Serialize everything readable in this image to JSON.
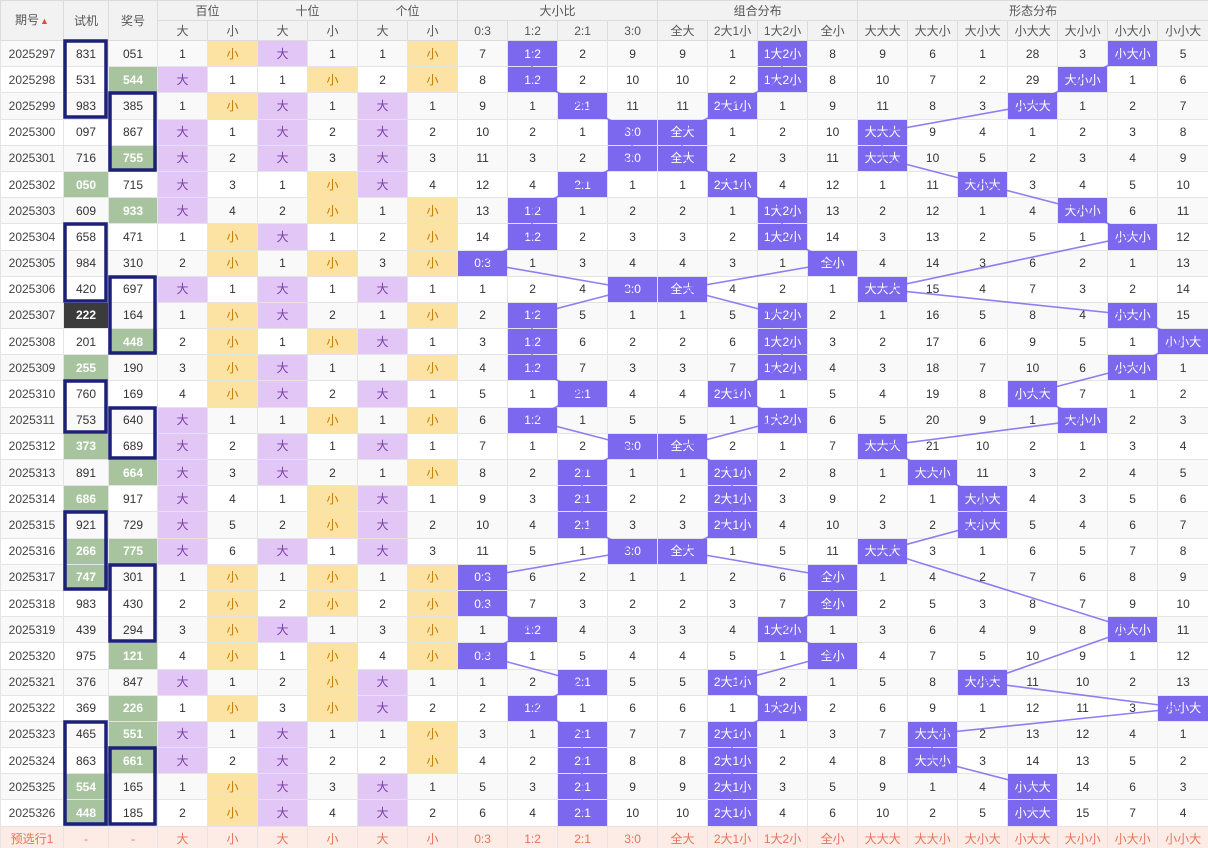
{
  "header": {
    "period": "期号",
    "trial": "试机",
    "prize": "奖号",
    "groups": [
      "百位",
      "十位",
      "个位",
      "大小比",
      "组合分布",
      "形态分布"
    ],
    "sub": [
      "大",
      "小",
      "大",
      "小",
      "大",
      "小",
      "0:3",
      "1:2",
      "2:1",
      "3:0",
      "全大",
      "2大1小",
      "1大2小",
      "全小",
      "大大大",
      "大大小",
      "大小大",
      "小大大",
      "大小小",
      "小大小",
      "小小大"
    ]
  },
  "colors": {
    "accent": "#7b68ee",
    "big": "#e2c7f6",
    "small": "#fce3a3",
    "green": "#a8c49e",
    "box": "#1c2078",
    "pre": "#fdebe6"
  },
  "rows": [
    {
      "p": "2025297",
      "t": "831",
      "w": "051",
      "tc": "",
      "wc": "",
      "v": [
        "1",
        "小",
        "大",
        "1",
        "1",
        "小",
        "7",
        "1:2",
        "2",
        "9",
        "9",
        "1",
        "1大2小",
        "8",
        "9",
        "6",
        "1",
        "28",
        "3",
        "小大小",
        "5"
      ]
    },
    {
      "p": "2025298",
      "t": "531",
      "w": "544",
      "tc": "",
      "wc": "g",
      "v": [
        "大",
        "1",
        "1",
        "小",
        "2",
        "小",
        "8",
        "1:2",
        "2",
        "10",
        "10",
        "2",
        "1大2小",
        "8",
        "10",
        "7",
        "2",
        "29",
        "大小小",
        "1",
        "6"
      ]
    },
    {
      "p": "2025299",
      "t": "983",
      "w": "385",
      "tc": "",
      "wc": "",
      "v": [
        "1",
        "小",
        "大",
        "1",
        "大",
        "1",
        "9",
        "1",
        "2:1",
        "11",
        "11",
        "2大1小",
        "1",
        "9",
        "11",
        "8",
        "3",
        "小大大",
        "1",
        "2",
        "7"
      ]
    },
    {
      "p": "2025300",
      "t": "097",
      "w": "867",
      "tc": "",
      "wc": "",
      "v": [
        "大",
        "1",
        "大",
        "2",
        "大",
        "2",
        "10",
        "2",
        "1",
        "3:0",
        "全大",
        "1",
        "2",
        "10",
        "大大大",
        "9",
        "4",
        "1",
        "2",
        "3",
        "8"
      ]
    },
    {
      "p": "2025301",
      "t": "716",
      "w": "755",
      "tc": "",
      "wc": "g",
      "v": [
        "大",
        "2",
        "大",
        "3",
        "大",
        "3",
        "11",
        "3",
        "2",
        "3:0",
        "全大",
        "2",
        "3",
        "11",
        "大大大",
        "10",
        "5",
        "2",
        "3",
        "4",
        "9"
      ]
    },
    {
      "p": "2025302",
      "t": "050",
      "w": "715",
      "tc": "g",
      "wc": "",
      "v": [
        "大",
        "3",
        "1",
        "小",
        "大",
        "4",
        "12",
        "4",
        "2:1",
        "1",
        "1",
        "2大1小",
        "4",
        "12",
        "1",
        "11",
        "大小大",
        "3",
        "4",
        "5",
        "10"
      ]
    },
    {
      "p": "2025303",
      "t": "609",
      "w": "933",
      "tc": "",
      "wc": "g",
      "v": [
        "大",
        "4",
        "2",
        "小",
        "1",
        "小",
        "13",
        "1:2",
        "1",
        "2",
        "2",
        "1",
        "1大2小",
        "13",
        "2",
        "12",
        "1",
        "4",
        "大小小",
        "6",
        "11"
      ]
    },
    {
      "p": "2025304",
      "t": "658",
      "w": "471",
      "tc": "",
      "wc": "",
      "v": [
        "1",
        "小",
        "大",
        "1",
        "2",
        "小",
        "14",
        "1:2",
        "2",
        "3",
        "3",
        "2",
        "1大2小",
        "14",
        "3",
        "13",
        "2",
        "5",
        "1",
        "小大小",
        "12"
      ]
    },
    {
      "p": "2025305",
      "t": "984",
      "w": "310",
      "tc": "",
      "wc": "",
      "v": [
        "2",
        "小",
        "1",
        "小",
        "3",
        "小",
        "0:3",
        "1",
        "3",
        "4",
        "4",
        "3",
        "1",
        "全小",
        "4",
        "14",
        "3",
        "6",
        "2",
        "1",
        "13"
      ]
    },
    {
      "p": "2025306",
      "t": "420",
      "w": "697",
      "tc": "",
      "wc": "",
      "v": [
        "大",
        "1",
        "大",
        "1",
        "大",
        "1",
        "1",
        "2",
        "4",
        "3:0",
        "全大",
        "4",
        "2",
        "1",
        "大大大",
        "15",
        "4",
        "7",
        "3",
        "2",
        "14"
      ]
    },
    {
      "p": "2025307",
      "t": "222",
      "w": "164",
      "tc": "b",
      "wc": "",
      "v": [
        "1",
        "小",
        "大",
        "2",
        "1",
        "小",
        "2",
        "1:2",
        "5",
        "1",
        "1",
        "5",
        "1大2小",
        "2",
        "1",
        "16",
        "5",
        "8",
        "4",
        "小大小",
        "15"
      ]
    },
    {
      "p": "2025308",
      "t": "201",
      "w": "448",
      "tc": "",
      "wc": "g",
      "v": [
        "2",
        "小",
        "1",
        "小",
        "大",
        "1",
        "3",
        "1:2",
        "6",
        "2",
        "2",
        "6",
        "1大2小",
        "3",
        "2",
        "17",
        "6",
        "9",
        "5",
        "1",
        "小小大"
      ]
    },
    {
      "p": "2025309",
      "t": "255",
      "w": "190",
      "tc": "g",
      "wc": "",
      "v": [
        "3",
        "小",
        "大",
        "1",
        "1",
        "小",
        "4",
        "1:2",
        "7",
        "3",
        "3",
        "7",
        "1大2小",
        "4",
        "3",
        "18",
        "7",
        "10",
        "6",
        "小大小",
        "1"
      ]
    },
    {
      "p": "2025310",
      "t": "760",
      "w": "169",
      "tc": "",
      "wc": "",
      "v": [
        "4",
        "小",
        "大",
        "2",
        "大",
        "1",
        "5",
        "1",
        "2:1",
        "4",
        "4",
        "2大1小",
        "1",
        "5",
        "4",
        "19",
        "8",
        "小大大",
        "7",
        "1",
        "2"
      ]
    },
    {
      "p": "2025311",
      "t": "753",
      "w": "640",
      "tc": "",
      "wc": "",
      "v": [
        "大",
        "1",
        "1",
        "小",
        "1",
        "小",
        "6",
        "1:2",
        "1",
        "5",
        "5",
        "1",
        "1大2小",
        "6",
        "5",
        "20",
        "9",
        "1",
        "大小小",
        "2",
        "3"
      ]
    },
    {
      "p": "2025312",
      "t": "373",
      "w": "689",
      "tc": "g",
      "wc": "",
      "v": [
        "大",
        "2",
        "大",
        "1",
        "大",
        "1",
        "7",
        "1",
        "2",
        "3:0",
        "全大",
        "2",
        "1",
        "7",
        "大大大",
        "21",
        "10",
        "2",
        "1",
        "3",
        "4"
      ]
    },
    {
      "p": "2025313",
      "t": "891",
      "w": "664",
      "tc": "",
      "wc": "g",
      "v": [
        "大",
        "3",
        "大",
        "2",
        "1",
        "小",
        "8",
        "2",
        "2:1",
        "1",
        "1",
        "2大1小",
        "2",
        "8",
        "1",
        "大大小",
        "11",
        "3",
        "2",
        "4",
        "5"
      ]
    },
    {
      "p": "2025314",
      "t": "686",
      "w": "917",
      "tc": "g",
      "wc": "",
      "v": [
        "大",
        "4",
        "1",
        "小",
        "大",
        "1",
        "9",
        "3",
        "2:1",
        "2",
        "2",
        "2大1小",
        "3",
        "9",
        "2",
        "1",
        "大小大",
        "4",
        "3",
        "5",
        "6"
      ]
    },
    {
      "p": "2025315",
      "t": "921",
      "w": "729",
      "tc": "",
      "wc": "",
      "v": [
        "大",
        "5",
        "2",
        "小",
        "大",
        "2",
        "10",
        "4",
        "2:1",
        "3",
        "3",
        "2大1小",
        "4",
        "10",
        "3",
        "2",
        "大小大",
        "5",
        "4",
        "6",
        "7"
      ]
    },
    {
      "p": "2025316",
      "t": "266",
      "w": "775",
      "tc": "g",
      "wc": "g",
      "v": [
        "大",
        "6",
        "大",
        "1",
        "大",
        "3",
        "11",
        "5",
        "1",
        "3:0",
        "全大",
        "1",
        "5",
        "11",
        "大大大",
        "3",
        "1",
        "6",
        "5",
        "7",
        "8"
      ]
    },
    {
      "p": "2025317",
      "t": "747",
      "w": "301",
      "tc": "g",
      "wc": "",
      "v": [
        "1",
        "小",
        "1",
        "小",
        "1",
        "小",
        "0:3",
        "6",
        "2",
        "1",
        "1",
        "2",
        "6",
        "全小",
        "1",
        "4",
        "2",
        "7",
        "6",
        "8",
        "9"
      ]
    },
    {
      "p": "2025318",
      "t": "983",
      "w": "430",
      "tc": "",
      "wc": "",
      "v": [
        "2",
        "小",
        "2",
        "小",
        "2",
        "小",
        "0:3",
        "7",
        "3",
        "2",
        "2",
        "3",
        "7",
        "全小",
        "2",
        "5",
        "3",
        "8",
        "7",
        "9",
        "10"
      ]
    },
    {
      "p": "2025319",
      "t": "439",
      "w": "294",
      "tc": "",
      "wc": "",
      "v": [
        "3",
        "小",
        "大",
        "1",
        "3",
        "小",
        "1",
        "1:2",
        "4",
        "3",
        "3",
        "4",
        "1大2小",
        "1",
        "3",
        "6",
        "4",
        "9",
        "8",
        "小大小",
        "11"
      ]
    },
    {
      "p": "2025320",
      "t": "975",
      "w": "121",
      "tc": "",
      "wc": "g",
      "v": [
        "4",
        "小",
        "1",
        "小",
        "4",
        "小",
        "0:3",
        "1",
        "5",
        "4",
        "4",
        "5",
        "1",
        "全小",
        "4",
        "7",
        "5",
        "10",
        "9",
        "1",
        "12"
      ]
    },
    {
      "p": "2025321",
      "t": "376",
      "w": "847",
      "tc": "",
      "wc": "",
      "v": [
        "大",
        "1",
        "2",
        "小",
        "大",
        "1",
        "1",
        "2",
        "2:1",
        "5",
        "5",
        "2大1小",
        "2",
        "1",
        "5",
        "8",
        "大小大",
        "11",
        "10",
        "2",
        "13"
      ]
    },
    {
      "p": "2025322",
      "t": "369",
      "w": "226",
      "tc": "",
      "wc": "g",
      "v": [
        "1",
        "小",
        "3",
        "小",
        "大",
        "2",
        "2",
        "1:2",
        "1",
        "6",
        "6",
        "1",
        "1大2小",
        "2",
        "6",
        "9",
        "1",
        "12",
        "11",
        "3",
        "小小大"
      ]
    },
    {
      "p": "2025323",
      "t": "465",
      "w": "551",
      "tc": "",
      "wc": "g",
      "v": [
        "大",
        "1",
        "大",
        "1",
        "1",
        "小",
        "3",
        "1",
        "2:1",
        "7",
        "7",
        "2大1小",
        "1",
        "3",
        "7",
        "大大小",
        "2",
        "13",
        "12",
        "4",
        "1"
      ]
    },
    {
      "p": "2025324",
      "t": "863",
      "w": "661",
      "tc": "",
      "wc": "g",
      "v": [
        "大",
        "2",
        "大",
        "2",
        "2",
        "小",
        "4",
        "2",
        "2:1",
        "8",
        "8",
        "2大1小",
        "2",
        "4",
        "8",
        "大大小",
        "3",
        "14",
        "13",
        "5",
        "2"
      ]
    },
    {
      "p": "2025325",
      "t": "554",
      "w": "165",
      "tc": "g",
      "wc": "",
      "v": [
        "1",
        "小",
        "大",
        "3",
        "大",
        "1",
        "5",
        "3",
        "2:1",
        "9",
        "9",
        "2大1小",
        "3",
        "5",
        "9",
        "1",
        "4",
        "小大大",
        "14",
        "6",
        "3"
      ]
    },
    {
      "p": "2025326",
      "t": "448",
      "w": "185",
      "tc": "g",
      "wc": "",
      "v": [
        "2",
        "小",
        "大",
        "4",
        "大",
        "2",
        "6",
        "4",
        "2:1",
        "10",
        "10",
        "2大1小",
        "4",
        "6",
        "10",
        "2",
        "5",
        "小大大",
        "15",
        "7",
        "4"
      ]
    }
  ],
  "preselect": {
    "label": "预选行1",
    "dash": "-",
    "v": [
      "大",
      "小",
      "大",
      "小",
      "大",
      "小",
      "0:3",
      "1:2",
      "2:1",
      "3:0",
      "全大",
      "2大1小",
      "1大2小",
      "全小",
      "大大大",
      "大大小",
      "大小大",
      "小大大",
      "大小小",
      "小大小",
      "小小大"
    ]
  }
}
